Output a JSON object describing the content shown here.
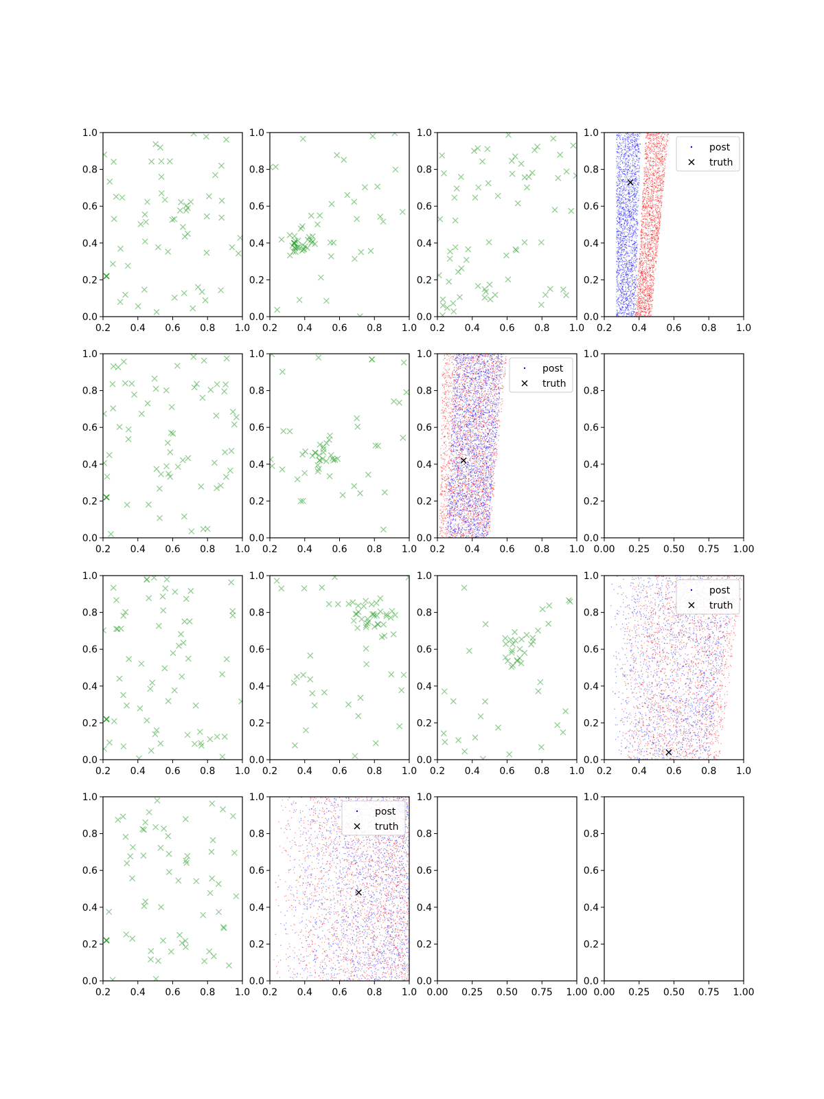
{
  "figure": {
    "background": "#ffffff"
  },
  "colors": {
    "green": "#2ca02c",
    "blue": "#0000ff",
    "red": "#ff0000",
    "truth": "#000000",
    "axis": "#000000"
  },
  "legend_labels": {
    "post": "post",
    "truth": "truth"
  },
  "chart_data": [
    {
      "id": "r1c1",
      "type": "scatter",
      "xlim": [
        0.2,
        1.0
      ],
      "ylim": [
        0.0,
        1.0
      ],
      "xticks": [
        "0.2",
        "0.4",
        "0.6",
        "0.8",
        "1.0"
      ],
      "yticks": [
        "0.0",
        "0.2",
        "0.4",
        "0.6",
        "0.8",
        "1.0"
      ],
      "highlight": [
        0.22,
        0.22
      ],
      "scatter": {
        "n": 60,
        "seed": 11
      }
    },
    {
      "id": "r1c2",
      "type": "scatter",
      "xlim": [
        0.2,
        1.0
      ],
      "ylim": [
        0.0,
        1.0
      ],
      "xticks": [
        "0.2",
        "0.4",
        "0.6",
        "0.8",
        "1.0"
      ],
      "yticks": [
        "0.0",
        "0.2",
        "0.4",
        "0.6",
        "0.8",
        "1.0"
      ],
      "highlight": [
        0.34,
        0.4
      ],
      "scatter": {
        "n": 60,
        "seed": 12,
        "cluster": [
          0.4,
          0.4,
          0.08
        ]
      }
    },
    {
      "id": "r1c3",
      "type": "scatter",
      "xlim": [
        0.2,
        1.0
      ],
      "ylim": [
        0.0,
        1.0
      ],
      "xticks": [
        "0.2",
        "0.4",
        "0.6",
        "0.8",
        "1.0"
      ],
      "yticks": [
        "0.0",
        "0.2",
        "0.4",
        "0.6",
        "0.8",
        "1.0"
      ],
      "scatter": {
        "n": 70,
        "seed": 13
      }
    },
    {
      "id": "r1c4",
      "type": "posterior",
      "xlim": [
        0.2,
        1.0
      ],
      "ylim": [
        0.0,
        1.0
      ],
      "xticks": [
        "0.2",
        "0.4",
        "0.6",
        "0.8",
        "1.0"
      ],
      "yticks": [
        "0.0",
        "0.2",
        "0.4",
        "0.6",
        "0.8",
        "1.0"
      ],
      "truth": [
        0.35,
        0.73
      ],
      "legend": "top-right",
      "posterior": [
        {
          "color": "blue",
          "x0": [
            0.27,
            0.38
          ],
          "x1": [
            0.27,
            0.41
          ],
          "n": 2200,
          "seed": 21
        },
        {
          "color": "red",
          "x0": [
            0.38,
            0.47
          ],
          "x1": [
            0.44,
            0.57
          ],
          "n": 2200,
          "seed": 22
        }
      ]
    },
    {
      "id": "r2c1",
      "type": "scatter",
      "xlim": [
        0.2,
        1.0
      ],
      "ylim": [
        0.0,
        1.0
      ],
      "xticks": [
        "0.2",
        "0.4",
        "0.6",
        "0.8",
        "1.0"
      ],
      "yticks": [
        "0.0",
        "0.2",
        "0.4",
        "0.6",
        "0.8",
        "1.0"
      ],
      "highlight": [
        0.22,
        0.22
      ],
      "scatter": {
        "n": 65,
        "seed": 31
      }
    },
    {
      "id": "r2c2",
      "type": "scatter",
      "xlim": [
        0.2,
        1.0
      ],
      "ylim": [
        0.0,
        1.0
      ],
      "xticks": [
        "0.2",
        "0.4",
        "0.6",
        "0.8",
        "1.0"
      ],
      "yticks": [
        "0.0",
        "0.2",
        "0.4",
        "0.6",
        "0.8",
        "1.0"
      ],
      "scatter": {
        "n": 55,
        "seed": 32,
        "cluster": [
          0.5,
          0.45,
          0.09
        ]
      }
    },
    {
      "id": "r2c3",
      "type": "posterior",
      "xlim": [
        0.2,
        1.0
      ],
      "ylim": [
        0.0,
        1.0
      ],
      "xticks": [
        "0.2",
        "0.4",
        "0.6",
        "0.8",
        "1.0"
      ],
      "yticks": [
        "0.0",
        "0.2",
        "0.4",
        "0.6",
        "0.8",
        "1.0"
      ],
      "truth": [
        0.35,
        0.42
      ],
      "legend": "top-right",
      "posterior": [
        {
          "color": "red",
          "x0": [
            0.21,
            0.5
          ],
          "x1": [
            0.23,
            0.6
          ],
          "n": 2500,
          "seed": 41
        },
        {
          "color": "blue",
          "x0": [
            0.25,
            0.49
          ],
          "x1": [
            0.3,
            0.58
          ],
          "n": 2500,
          "seed": 42
        }
      ]
    },
    {
      "id": "r2c4",
      "type": "empty",
      "xlim": [
        0.0,
        1.0
      ],
      "ylim": [
        0.0,
        1.0
      ],
      "xticks": [
        "0.00",
        "0.25",
        "0.50",
        "0.75",
        "1.00"
      ],
      "yticks": [
        "0.0",
        "0.2",
        "0.4",
        "0.6",
        "0.8",
        "1.0"
      ]
    },
    {
      "id": "r3c1",
      "type": "scatter",
      "xlim": [
        0.2,
        1.0
      ],
      "ylim": [
        0.0,
        1.0
      ],
      "xticks": [
        "0.2",
        "0.4",
        "0.6",
        "0.8",
        "1.0"
      ],
      "yticks": [
        "0.0",
        "0.2",
        "0.4",
        "0.6",
        "0.8",
        "1.0"
      ],
      "highlight": [
        0.22,
        0.22
      ],
      "scatter": {
        "n": 65,
        "seed": 51
      }
    },
    {
      "id": "r3c2",
      "type": "scatter",
      "xlim": [
        0.2,
        1.0
      ],
      "ylim": [
        0.0,
        1.0
      ],
      "xticks": [
        "0.2",
        "0.4",
        "0.6",
        "0.8",
        "1.0"
      ],
      "yticks": [
        "0.0",
        "0.2",
        "0.4",
        "0.6",
        "0.8",
        "1.0"
      ],
      "scatter": {
        "n": 65,
        "seed": 52,
        "cluster": [
          0.8,
          0.78,
          0.1
        ]
      }
    },
    {
      "id": "r3c3",
      "type": "scatter",
      "xlim": [
        0.2,
        1.0
      ],
      "ylim": [
        0.0,
        1.0
      ],
      "xticks": [
        "0.2",
        "0.4",
        "0.6",
        "0.8",
        "1.0"
      ],
      "yticks": [
        "0.0",
        "0.2",
        "0.4",
        "0.6",
        "0.8",
        "1.0"
      ],
      "scatter": {
        "n": 50,
        "seed": 53,
        "cluster": [
          0.68,
          0.6,
          0.1
        ]
      }
    },
    {
      "id": "r3c4",
      "type": "posterior",
      "xlim": [
        0.2,
        1.0
      ],
      "ylim": [
        0.0,
        1.0
      ],
      "xticks": [
        "0.2",
        "0.4",
        "0.6",
        "0.8",
        "1.0"
      ],
      "yticks": [
        "0.0",
        "0.2",
        "0.4",
        "0.6",
        "0.8",
        "1.0"
      ],
      "truth": [
        0.57,
        0.04
      ],
      "legend": "top-right",
      "posterior": [
        {
          "color": "blue",
          "x0": [
            0.25,
            0.8
          ],
          "x1": [
            0.22,
            0.95
          ],
          "n": 1700,
          "seed": 61,
          "skew": 0.7
        },
        {
          "color": "red",
          "x0": [
            0.3,
            0.86
          ],
          "x1": [
            0.3,
            1.0
          ],
          "n": 1900,
          "seed": 62,
          "skew": 0.7
        }
      ]
    },
    {
      "id": "r4c1",
      "type": "scatter",
      "xlim": [
        0.2,
        1.0
      ],
      "ylim": [
        0.0,
        1.0
      ],
      "xticks": [
        "0.2",
        "0.4",
        "0.6",
        "0.8",
        "1.0"
      ],
      "yticks": [
        "0.0",
        "0.2",
        "0.4",
        "0.6",
        "0.8",
        "1.0"
      ],
      "highlight": [
        0.22,
        0.22
      ],
      "scatter": {
        "n": 60,
        "seed": 71
      }
    },
    {
      "id": "r4c2",
      "type": "posterior",
      "xlim": [
        0.2,
        1.0
      ],
      "ylim": [
        0.0,
        1.0
      ],
      "xticks": [
        "0.2",
        "0.4",
        "0.6",
        "0.8",
        "1.0"
      ],
      "yticks": [
        "0.0",
        "0.2",
        "0.4",
        "0.6",
        "0.8",
        "1.0"
      ],
      "truth": [
        0.71,
        0.48
      ],
      "legend": "top-right",
      "posterior": [
        {
          "color": "blue",
          "x0": [
            0.2,
            1.0
          ],
          "x1": [
            0.25,
            1.0
          ],
          "n": 1900,
          "seed": 81,
          "skew": 0.55
        },
        {
          "color": "red",
          "x0": [
            0.2,
            1.0
          ],
          "x1": [
            0.25,
            1.0
          ],
          "n": 1900,
          "seed": 82,
          "skew": 0.55
        }
      ]
    },
    {
      "id": "r4c3",
      "type": "empty",
      "xlim": [
        0.0,
        1.0
      ],
      "ylim": [
        0.0,
        1.0
      ],
      "xticks": [
        "0.00",
        "0.25",
        "0.50",
        "0.75",
        "1.00"
      ],
      "yticks": [
        "0.0",
        "0.2",
        "0.4",
        "0.6",
        "0.8",
        "1.0"
      ]
    },
    {
      "id": "r4c4",
      "type": "empty",
      "xlim": [
        0.0,
        1.0
      ],
      "ylim": [
        0.0,
        1.0
      ],
      "xticks": [
        "0.00",
        "0.25",
        "0.50",
        "0.75",
        "1.00"
      ],
      "yticks": [
        "0.0",
        "0.2",
        "0.4",
        "0.6",
        "0.8",
        "1.0"
      ]
    }
  ]
}
